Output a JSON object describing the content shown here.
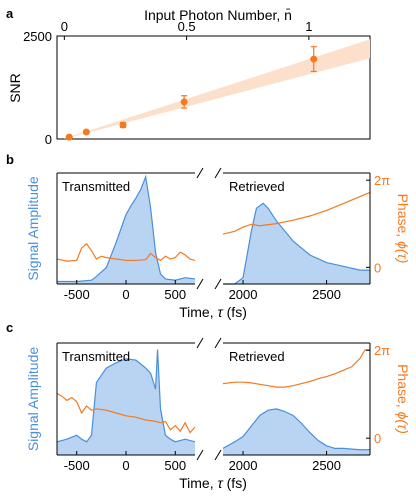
{
  "colors": {
    "blue": "#4a8fdc",
    "blue_fill": "#b9d3f2",
    "orange": "#f47a20",
    "band": "#fde0cc",
    "axis": "#000000"
  },
  "chart_data": [
    {
      "panel": "a",
      "type": "scatter",
      "top_axis_label": "Input Photon Number, n̄",
      "top_ticks": [
        "0",
        "0.5",
        "1"
      ],
      "top_tick_values": [
        0,
        0.5,
        1
      ],
      "ylabel": "SNR",
      "y_ticks": [
        "0",
        "2500"
      ],
      "y_tick_values": [
        0,
        2500
      ],
      "xlim": [
        -0.03,
        1.25
      ],
      "ylim": [
        0,
        2500
      ],
      "points": [
        {
          "x": 0.02,
          "y": 45,
          "err": 20
        },
        {
          "x": 0.09,
          "y": 170,
          "err": 30
        },
        {
          "x": 0.24,
          "y": 340,
          "err": 60
        },
        {
          "x": 0.49,
          "y": 900,
          "err": 150
        },
        {
          "x": 1.02,
          "y": 1940,
          "err": 300
        }
      ],
      "band": {
        "x0": 0.0,
        "x1": 1.25,
        "lo0": 0,
        "hi0": 10,
        "lo1": 1960,
        "hi1": 2420
      }
    },
    {
      "panel": "b",
      "type": "line",
      "left_title": "Transmitted",
      "right_title": "Retrieved",
      "ylabel_left": "Signal Amplitude",
      "ylabel_right_main": "Phase, ",
      "ylabel_right_sym": "ϕ(τ)",
      "right_ticks": [
        "2π",
        "0"
      ],
      "xlabel_main": "Time, ",
      "xlabel_sym": "τ",
      "xlabel_unit": " (fs)",
      "x_ticks_left": [
        "-500",
        "0",
        "500"
      ],
      "x_ticks_right": [
        "2000",
        "2500"
      ],
      "xlim_left": [
        -700,
        700
      ],
      "xlim_right": [
        1880,
        2760
      ],
      "amp_left": {
        "x": [
          -700,
          -500,
          -350,
          -300,
          -200,
          -100,
          0,
          50,
          100,
          150,
          200,
          250,
          300,
          350,
          400,
          500,
          600,
          700
        ],
        "y": [
          0.02,
          0.02,
          0.03,
          0.06,
          0.13,
          0.33,
          0.55,
          0.62,
          0.68,
          0.75,
          0.85,
          0.6,
          0.25,
          0.08,
          0.04,
          0.03,
          0.05,
          0.04
        ]
      },
      "amp_right": {
        "x": [
          1880,
          1950,
          2000,
          2050,
          2080,
          2120,
          2150,
          2200,
          2300,
          2400,
          2500,
          2600,
          2700,
          2760
        ],
        "y": [
          0.0,
          0.0,
          0.05,
          0.42,
          0.6,
          0.64,
          0.6,
          0.5,
          0.34,
          0.23,
          0.17,
          0.14,
          0.11,
          0.11
        ]
      },
      "phase_left": {
        "x": [
          -700,
          -600,
          -500,
          -450,
          -400,
          -350,
          -300,
          -250,
          -200,
          -100,
          0,
          100,
          200,
          250,
          300,
          350,
          400,
          450,
          500,
          550,
          600,
          650,
          700
        ],
        "y": [
          0.6,
          0.45,
          0.5,
          1.4,
          1.7,
          1.2,
          0.6,
          0.8,
          0.7,
          0.6,
          0.5,
          0.5,
          0.55,
          1.0,
          0.7,
          0.5,
          0.8,
          0.6,
          0.7,
          1.1,
          0.9,
          0.6,
          0.5
        ]
      },
      "phase_right": {
        "x": [
          1880,
          1950,
          2000,
          2050,
          2100,
          2200,
          2300,
          2400,
          2500,
          2600,
          2700,
          2760
        ],
        "y": [
          2.4,
          2.6,
          2.9,
          3.1,
          3.0,
          3.15,
          3.4,
          3.7,
          4.1,
          4.6,
          5.1,
          5.4
        ]
      },
      "phase_ylim": [
        -1.2,
        6.8
      ],
      "amp_ylim": [
        0,
        0.88
      ]
    },
    {
      "panel": "c",
      "type": "line",
      "left_title": "Transmitted",
      "right_title": "Retrieved",
      "ylabel_left": "Signal Amplitude",
      "ylabel_right_main": "Phase, ",
      "ylabel_right_sym": "ϕ(τ)",
      "right_ticks": [
        "2π",
        "0"
      ],
      "xlabel_main": "Time, ",
      "xlabel_sym": "τ",
      "xlabel_unit": " (fs)",
      "x_ticks_left": [
        "-500",
        "0",
        "500"
      ],
      "x_ticks_right": [
        "2000",
        "2500"
      ],
      "xlim_left": [
        -700,
        700
      ],
      "xlim_right": [
        1880,
        2760
      ],
      "amp_left": {
        "x": [
          -700,
          -600,
          -500,
          -450,
          -400,
          -350,
          -300,
          -200,
          -100,
          0,
          100,
          200,
          250,
          300,
          320,
          350,
          400,
          450,
          500,
          600,
          700
        ],
        "y": [
          0.1,
          0.12,
          0.15,
          0.12,
          0.1,
          0.15,
          0.55,
          0.66,
          0.7,
          0.73,
          0.72,
          0.66,
          0.62,
          0.5,
          0.8,
          0.35,
          0.15,
          0.12,
          0.1,
          0.12,
          0.1
        ]
      },
      "amp_right": {
        "x": [
          1880,
          1950,
          2000,
          2050,
          2100,
          2150,
          2200,
          2250,
          2300,
          2350,
          2400,
          2450,
          2500,
          2550,
          2600,
          2700,
          2760
        ],
        "y": [
          0.05,
          0.1,
          0.14,
          0.22,
          0.3,
          0.34,
          0.35,
          0.33,
          0.3,
          0.24,
          0.17,
          0.11,
          0.07,
          0.05,
          0.05,
          0.04,
          0.04
        ]
      },
      "phase_left": {
        "x": [
          -700,
          -650,
          -600,
          -550,
          -500,
          -450,
          -400,
          -350,
          -300,
          -200,
          -100,
          0,
          100,
          200,
          300,
          350,
          400,
          450,
          500,
          550,
          600,
          650,
          700
        ],
        "y": [
          3.2,
          3.0,
          2.7,
          2.9,
          2.6,
          1.8,
          2.3,
          2.0,
          2.1,
          2.0,
          1.8,
          1.6,
          1.5,
          1.3,
          1.2,
          1.1,
          1.2,
          0.6,
          0.9,
          0.5,
          1.1,
          0.4,
          0.8
        ]
      },
      "phase_right": {
        "x": [
          1880,
          1950,
          2000,
          2050,
          2100,
          2150,
          2200,
          2250,
          2300,
          2350,
          2400,
          2450,
          2500,
          2550,
          2600,
          2650,
          2700,
          2730,
          2760
        ],
        "y": [
          3.9,
          4.0,
          4.0,
          3.95,
          3.85,
          3.75,
          3.65,
          3.65,
          3.75,
          3.9,
          4.05,
          4.25,
          4.4,
          4.6,
          4.85,
          5.1,
          5.7,
          6.3,
          6.3
        ]
      },
      "phase_ylim": [
        -1.2,
        6.8
      ],
      "amp_ylim": [
        0,
        0.85
      ]
    }
  ]
}
